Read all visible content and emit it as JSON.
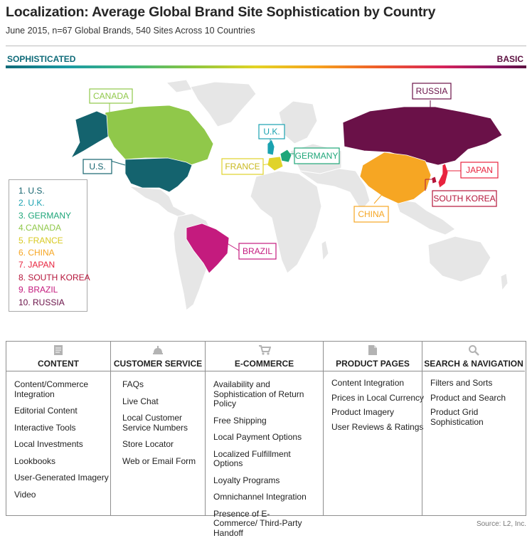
{
  "title": "Localization: Average Global Brand Site Sophistication by Country",
  "subtitle": "June 2015, n=67 Global Brands, 540 Sites Across 10 Countries",
  "scale": {
    "left_label": "SOPHISTICATED",
    "right_label": "BASIC"
  },
  "colors": {
    "us": "#14636e",
    "uk": "#1aa2b0",
    "germany": "#1ea679",
    "canada": "#90c84a",
    "france": "#e0d32a",
    "china": "#f6a623",
    "japan": "#e8233e",
    "south_korea": "#b5153a",
    "brazil": "#c41b7e",
    "russia": "#6a1148",
    "land": "#e6e6e6"
  },
  "map_labels": [
    {
      "id": "canada",
      "text": "CANADA",
      "color": "#90c84a"
    },
    {
      "id": "us",
      "text": "U.S.",
      "color": "#14636e"
    },
    {
      "id": "uk",
      "text": "U.K.",
      "color": "#1aa2b0"
    },
    {
      "id": "germany",
      "text": "GERMANY",
      "color": "#1ea679"
    },
    {
      "id": "france",
      "text": "FRANCE",
      "color": "#e0d32a"
    },
    {
      "id": "russia",
      "text": "RUSSIA",
      "color": "#6a1148"
    },
    {
      "id": "japan",
      "text": "JAPAN",
      "color": "#e8233e"
    },
    {
      "id": "south_korea",
      "text": "SOUTH KOREA",
      "color": "#b5153a"
    },
    {
      "id": "china",
      "text": "CHINA",
      "color": "#f6a623"
    },
    {
      "id": "brazil",
      "text": "BRAZIL",
      "color": "#c41b7e"
    }
  ],
  "ranking": [
    {
      "text": "1. U.S.",
      "color": "#14636e"
    },
    {
      "text": "2. U.K.",
      "color": "#1aa2b0"
    },
    {
      "text": "3. GERMANY",
      "color": "#1ea679"
    },
    {
      "text": "4.CANADA",
      "color": "#90c84a"
    },
    {
      "text": "5. FRANCE",
      "color": "#e0d32a"
    },
    {
      "text": "6. CHINA",
      "color": "#f6a623"
    },
    {
      "text": "7. JAPAN",
      "color": "#e8233e"
    },
    {
      "text": "8. SOUTH KOREA",
      "color": "#b5153a"
    },
    {
      "text": "9. BRAZIL",
      "color": "#c41b7e"
    },
    {
      "text": "10. RUSSIA",
      "color": "#6a1148"
    }
  ],
  "categories": [
    {
      "title": "CONTENT",
      "icon": "document-icon",
      "items": [
        "Content/Commerce Integration",
        "Editorial Content",
        "Interactive Tools",
        "Local Investments",
        "Lookbooks",
        "User-Generated Imagery",
        "Video"
      ]
    },
    {
      "title": "CUSTOMER SERVICE",
      "icon": "service-bell-icon",
      "items": [
        "FAQs",
        "Live Chat",
        "Local Customer Service Numbers",
        "Store Locator",
        "Web or Email Form"
      ]
    },
    {
      "title": "E-COMMERCE",
      "icon": "shopping-cart-icon",
      "items": [
        "Availability and Sophistication of Return Policy",
        "Free Shipping",
        "Local Payment Options",
        "Localized Fulfillment Options",
        "Loyalty Programs",
        "Omnichannel Integration",
        "Presence of E-Commerce/ Third-Party Handoff"
      ]
    },
    {
      "title": "PRODUCT PAGES",
      "icon": "page-icon",
      "items": [
        "Content Integration",
        "Prices in Local Currency",
        "Product Imagery",
        "User Reviews & Ratings"
      ]
    },
    {
      "title": "SEARCH & NAVIGATION",
      "icon": "magnifier-icon",
      "items": [
        "Filters and Sorts",
        "Product and Search",
        "Product Grid Sophistication"
      ]
    }
  ],
  "source": "Source: L2, Inc."
}
